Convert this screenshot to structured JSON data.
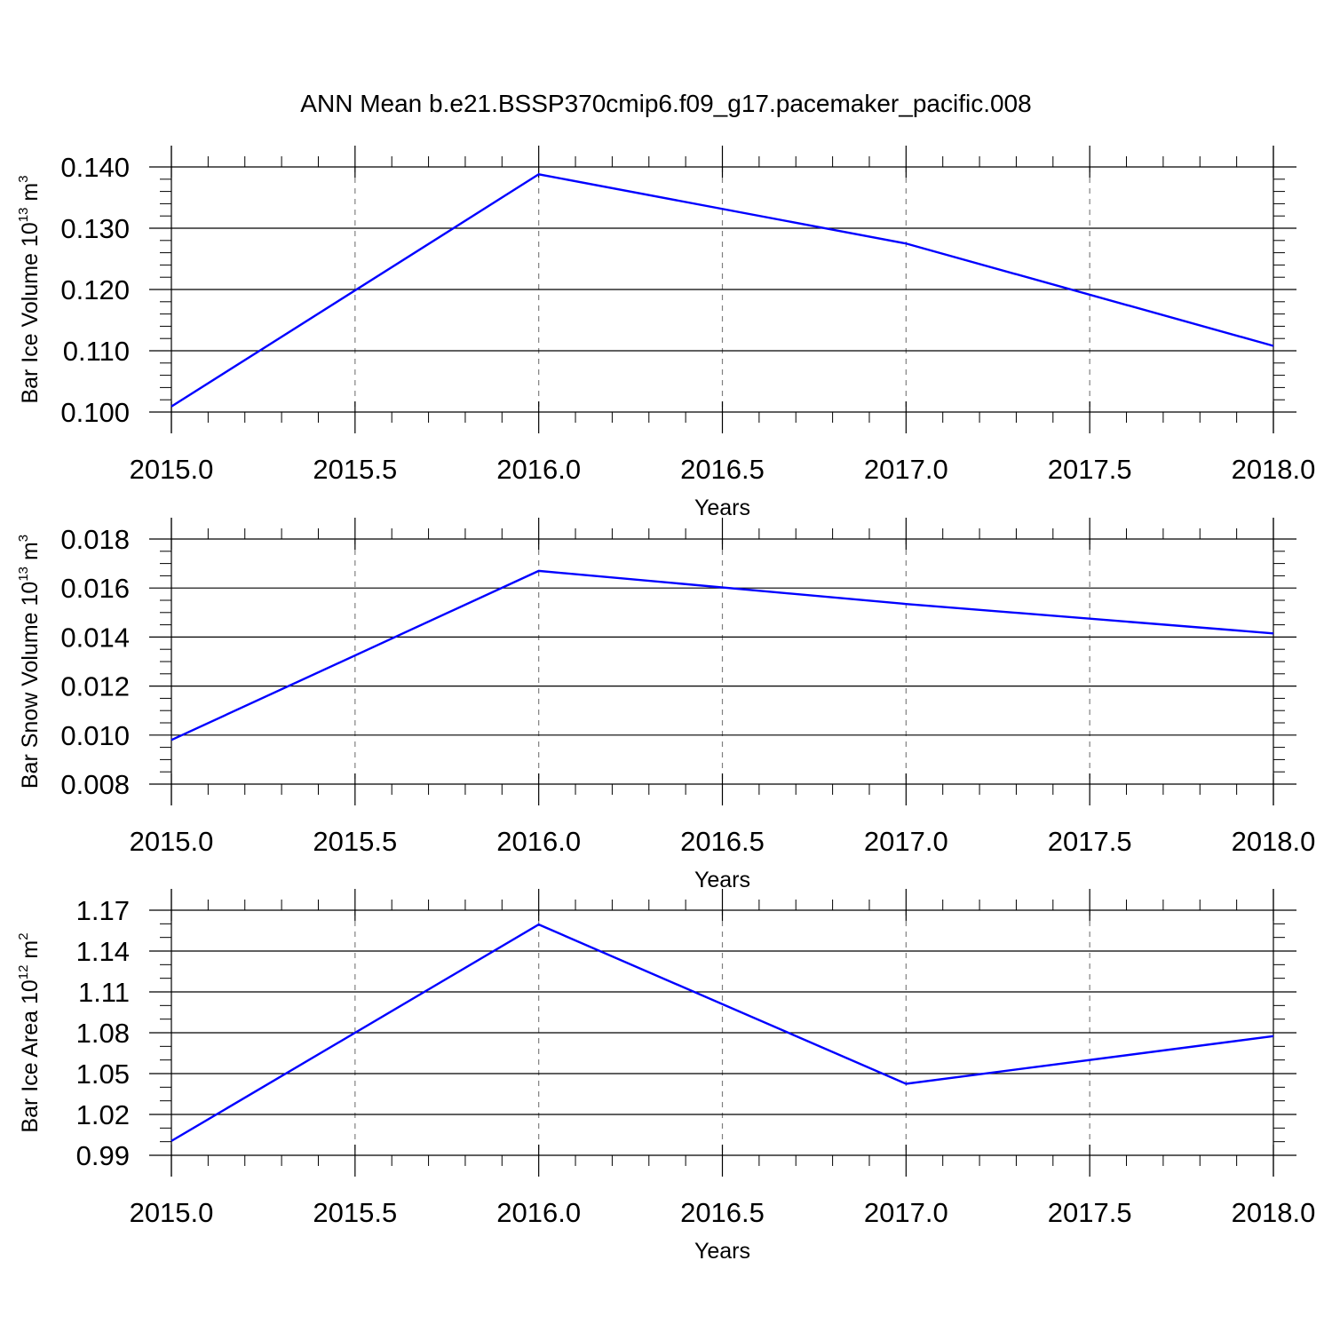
{
  "title": "ANN Mean b.e21.BSSP370cmip6.f09_g17.pacemaker_pacific.008",
  "colors": {
    "series": "#0000ff",
    "axis": "#000000",
    "grid": "#808080"
  },
  "chart_data": [
    {
      "type": "line",
      "x": [
        2015.0,
        2016.0,
        2017.0,
        2018.0
      ],
      "series": [
        {
          "values": [
            0.1009,
            0.1388,
            0.1275,
            0.1108
          ]
        }
      ],
      "xlabel": "Years",
      "ylabel": {
        "prefix": "Bar Ice Volume 10",
        "exp1": "13",
        "mid": " m",
        "exp2": "3"
      },
      "xlim": [
        2015.0,
        2018.0
      ],
      "ylim": [
        0.1,
        0.14
      ],
      "xticks": [
        2015.0,
        2015.5,
        2016.0,
        2016.5,
        2017.0,
        2017.5,
        2018.0
      ],
      "xtick_labels": [
        "2015.0",
        "2015.5",
        "2016.0",
        "2016.5",
        "2017.0",
        "2017.5",
        "2018.0"
      ],
      "yticks": [
        0.1,
        0.11,
        0.12,
        0.13,
        0.14
      ],
      "ytick_labels": [
        "0.100",
        "0.110",
        "0.120",
        "0.130",
        "0.140"
      ],
      "x_minor_step": 0.1,
      "y_minor_step": 0.002,
      "grid": "vertical dashed"
    },
    {
      "type": "line",
      "x": [
        2015.0,
        2016.0,
        2017.0,
        2018.0
      ],
      "series": [
        {
          "values": [
            0.0098,
            0.0167,
            0.01535,
            0.01415
          ]
        }
      ],
      "xlabel": "Years",
      "ylabel": {
        "prefix": "Bar Snow Volume 10",
        "exp1": "13",
        "mid": " m",
        "exp2": "3"
      },
      "xlim": [
        2015.0,
        2018.0
      ],
      "ylim": [
        0.008,
        0.018
      ],
      "xticks": [
        2015.0,
        2015.5,
        2016.0,
        2016.5,
        2017.0,
        2017.5,
        2018.0
      ],
      "xtick_labels": [
        "2015.0",
        "2015.5",
        "2016.0",
        "2016.5",
        "2017.0",
        "2017.5",
        "2018.0"
      ],
      "yticks": [
        0.008,
        0.01,
        0.012,
        0.014,
        0.016,
        0.018
      ],
      "ytick_labels": [
        "0.008",
        "0.010",
        "0.012",
        "0.014",
        "0.016",
        "0.018"
      ],
      "x_minor_step": 0.1,
      "y_minor_step": 0.0005,
      "grid": "vertical dashed"
    },
    {
      "type": "line",
      "x": [
        2015.0,
        2016.0,
        2017.0,
        2018.0
      ],
      "series": [
        {
          "values": [
            1.0005,
            1.1595,
            1.0425,
            1.0775
          ]
        }
      ],
      "xlabel": "Years",
      "ylabel": {
        "prefix": "Bar Ice Area 10",
        "exp1": "12",
        "mid": " m",
        "exp2": "2"
      },
      "xlim": [
        2015.0,
        2018.0
      ],
      "ylim": [
        0.99,
        1.17
      ],
      "xticks": [
        2015.0,
        2015.5,
        2016.0,
        2016.5,
        2017.0,
        2017.5,
        2018.0
      ],
      "xtick_labels": [
        "2015.0",
        "2015.5",
        "2016.0",
        "2016.5",
        "2017.0",
        "2017.5",
        "2018.0"
      ],
      "yticks": [
        0.99,
        1.02,
        1.05,
        1.08,
        1.11,
        1.14,
        1.17
      ],
      "ytick_labels": [
        "0.99",
        "1.02",
        "1.05",
        "1.08",
        "1.11",
        "1.14",
        "1.17"
      ],
      "x_minor_step": 0.1,
      "y_minor_step": 0.01,
      "grid": "vertical dashed"
    }
  ]
}
